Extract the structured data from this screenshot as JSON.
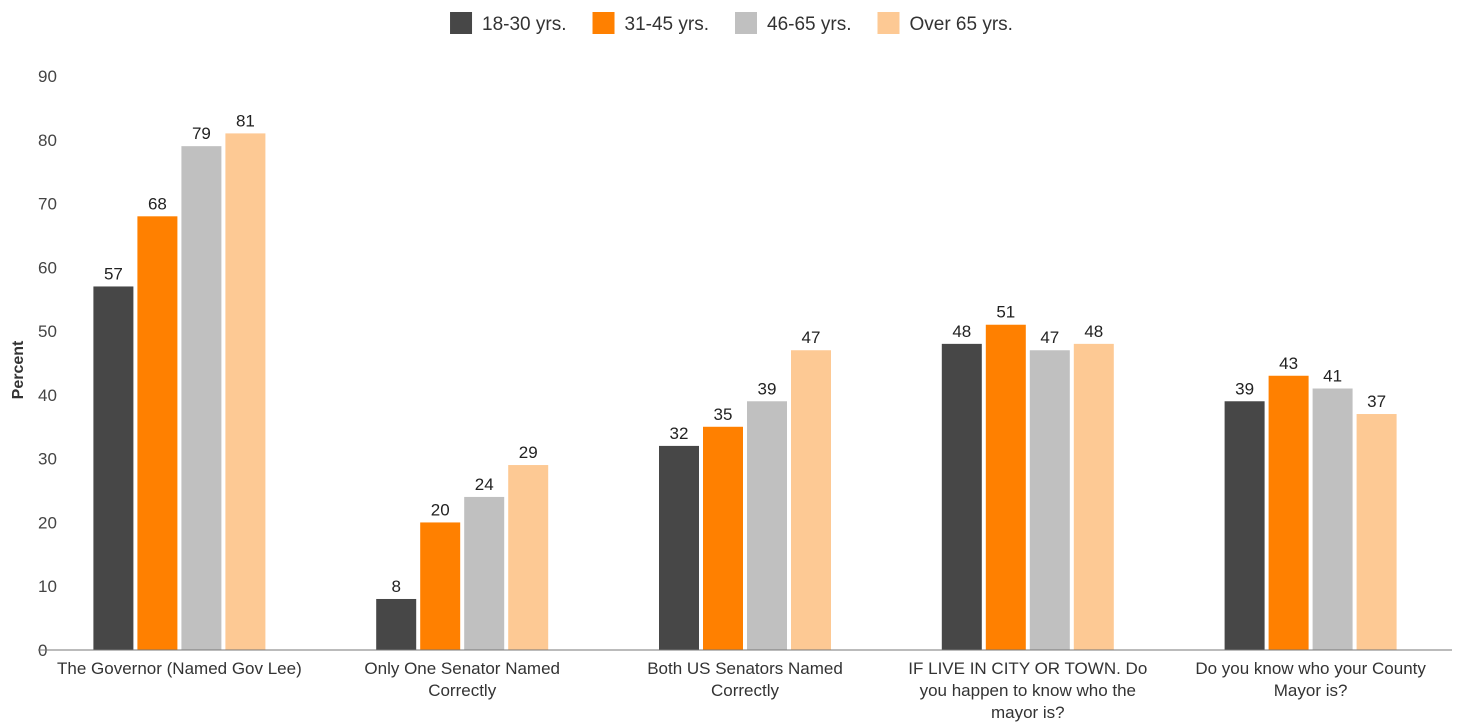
{
  "chart_data": {
    "type": "bar",
    "title": "",
    "xlabel": "",
    "ylabel": "Percent",
    "ylim": [
      0,
      90
    ],
    "yticks": [
      0,
      10,
      20,
      30,
      40,
      50,
      60,
      70,
      80,
      90
    ],
    "grid": false,
    "legend_position": "top-center",
    "categories": [
      [
        "The Governor (Named Gov Lee)"
      ],
      [
        "Only One Senator Named",
        "Correctly"
      ],
      [
        "Both US Senators Named",
        "Correctly"
      ],
      [
        "IF LIVE IN CITY OR TOWN. Do",
        "you happen to know who the",
        "mayor is?"
      ],
      [
        "Do you know who your County",
        "Mayor is?"
      ]
    ],
    "series": [
      {
        "name": "18-30 yrs.",
        "color": "#474747",
        "values": [
          57,
          8,
          32,
          48,
          39
        ]
      },
      {
        "name": "31-45 yrs.",
        "color": "#ff8000",
        "values": [
          68,
          20,
          35,
          51,
          43
        ]
      },
      {
        "name": "46-65 yrs.",
        "color": "#c0c0c0",
        "values": [
          79,
          24,
          39,
          47,
          41
        ]
      },
      {
        "name": "Over 65 yrs.",
        "color": "#fdc994",
        "values": [
          81,
          29,
          47,
          48,
          37
        ]
      }
    ]
  }
}
